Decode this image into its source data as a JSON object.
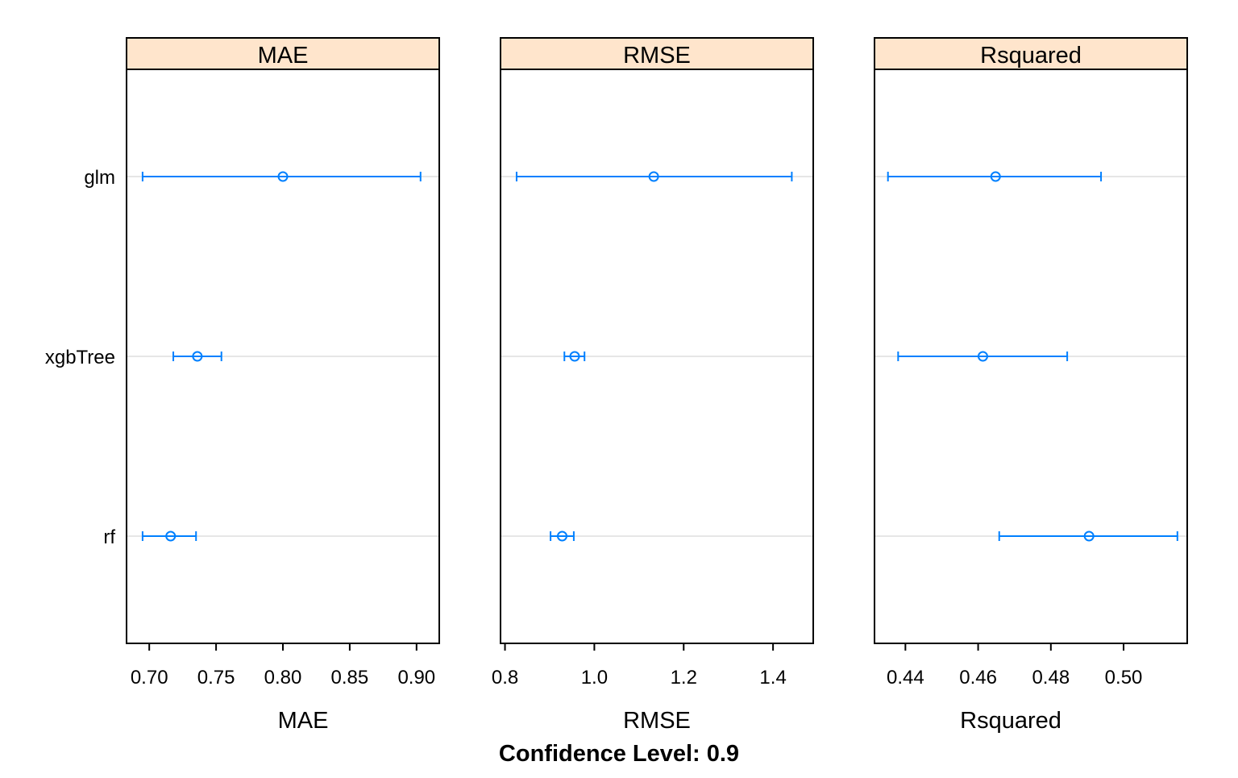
{
  "chart_data": {
    "type": "dotplot",
    "footer": "Confidence Level: 0.9",
    "models": [
      "rf",
      "xgbTree",
      "glm"
    ],
    "colors": {
      "series": "#0080ff",
      "strip": "#ffe5cc",
      "reference_line": "#e6e6e6"
    },
    "grid": false,
    "panels": [
      {
        "name": "MAE",
        "xlabel": "MAE",
        "xlim": [
          0.683,
          0.917
        ],
        "ticks": [
          "0.70",
          "0.75",
          "0.80",
          "0.85",
          "0.90"
        ],
        "tick_values": [
          0.7,
          0.75,
          0.8,
          0.85,
          0.9
        ],
        "points": [
          {
            "model": "glm",
            "estimate": 0.8,
            "lower": 0.695,
            "upper": 0.903
          },
          {
            "model": "xgbTree",
            "estimate": 0.736,
            "lower": 0.718,
            "upper": 0.754
          },
          {
            "model": "rf",
            "estimate": 0.716,
            "lower": 0.695,
            "upper": 0.735
          }
        ]
      },
      {
        "name": "RMSE",
        "xlabel": "RMSE",
        "xlim": [
          0.79,
          1.49
        ],
        "ticks": [
          "0.8",
          "1.0",
          "1.2",
          "1.4"
        ],
        "tick_values": [
          0.8,
          1.0,
          1.2,
          1.4
        ],
        "points": [
          {
            "model": "glm",
            "estimate": 1.133,
            "lower": 0.826,
            "upper": 1.442
          },
          {
            "model": "xgbTree",
            "estimate": 0.956,
            "lower": 0.933,
            "upper": 0.978
          },
          {
            "model": "rf",
            "estimate": 0.928,
            "lower": 0.902,
            "upper": 0.954
          }
        ]
      },
      {
        "name": "Rsquared",
        "xlabel": "Rsquared",
        "xlim": [
          0.4315,
          0.5175
        ],
        "ticks": [
          "0.44",
          "0.46",
          "0.48",
          "0.50"
        ],
        "tick_values": [
          0.44,
          0.46,
          0.48,
          0.5
        ],
        "points": [
          {
            "model": "glm",
            "estimate": 0.4648,
            "lower": 0.4352,
            "upper": 0.4938
          },
          {
            "model": "xgbTree",
            "estimate": 0.4613,
            "lower": 0.438,
            "upper": 0.4845
          },
          {
            "model": "rf",
            "estimate": 0.4905,
            "lower": 0.4658,
            "upper": 0.5148
          }
        ]
      }
    ]
  }
}
